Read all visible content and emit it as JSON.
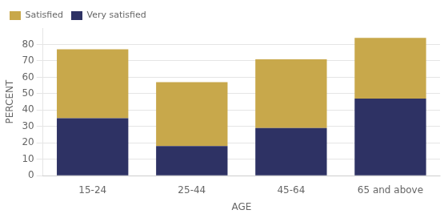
{
  "chart_data": {
    "type": "bar",
    "stacked": true,
    "categories": [
      "15-24",
      "25-44",
      "45-64",
      "65 and above"
    ],
    "series": [
      {
        "name": "Very satisfied",
        "color": "#2e3264",
        "values": [
          35,
          18,
          29,
          47
        ]
      },
      {
        "name": "Satisfied",
        "color": "#c8a84b",
        "values": [
          42,
          39,
          42,
          37
        ]
      }
    ],
    "xlabel": "AGE",
    "ylabel": "PERCENT",
    "ylim": [
      0,
      90
    ],
    "yticks": [
      0,
      10,
      20,
      30,
      40,
      50,
      60,
      70,
      80
    ],
    "grid": true,
    "legend": "upper left"
  }
}
